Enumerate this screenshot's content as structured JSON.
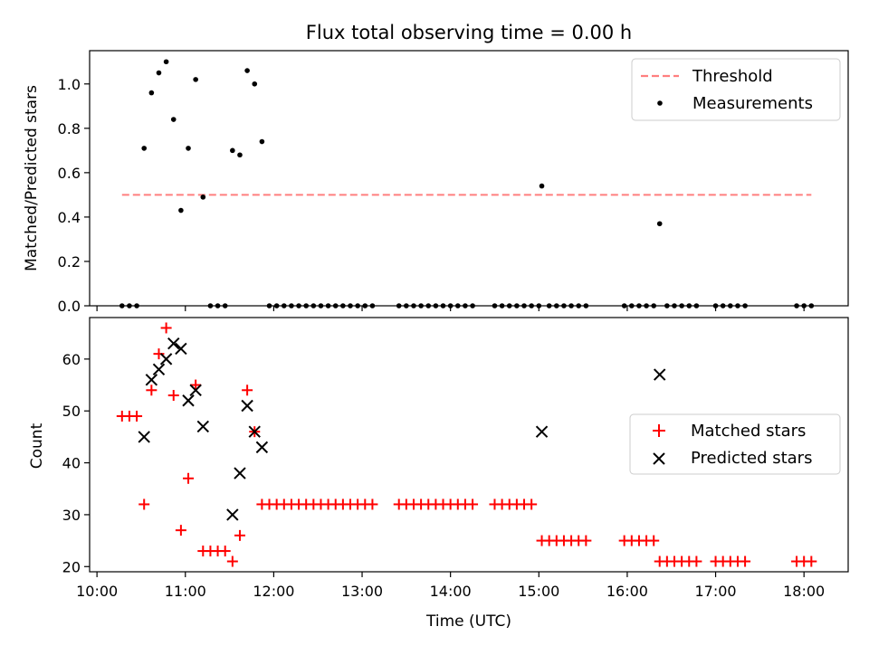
{
  "chart_data": [
    {
      "type": "scatter",
      "title": "Flux total observing time = 0.00 h",
      "xlabel": "",
      "ylabel": "Matched/Predicted stars",
      "xlim": [
        "09:55",
        "18:30"
      ],
      "ylim": [
        0.0,
        1.15
      ],
      "yticks": [
        "0.0",
        "0.2",
        "0.4",
        "0.6",
        "0.8",
        "1.0"
      ],
      "threshold_color": "#ff7f7f",
      "measure_color": "#000000",
      "legend": {
        "position": "top-right",
        "entries": [
          "Threshold",
          "Measurements"
        ]
      },
      "series": [
        {
          "name": "Threshold",
          "kind": "line",
          "x": [
            "10:17",
            "18:05"
          ],
          "y": [
            0.5,
            0.5
          ]
        },
        {
          "name": "Measurements",
          "kind": "scatter",
          "points": [
            [
              "10:17",
              0
            ],
            [
              "10:22",
              0
            ],
            [
              "10:27",
              0
            ],
            [
              "10:32",
              0.71
            ],
            [
              "10:37",
              0.96
            ],
            [
              "10:42",
              1.05
            ],
            [
              "10:47",
              1.1
            ],
            [
              "10:52",
              0.84
            ],
            [
              "10:57",
              0.43
            ],
            [
              "11:02",
              0.71
            ],
            [
              "11:07",
              1.02
            ],
            [
              "11:12",
              0.49
            ],
            [
              "11:17",
              0
            ],
            [
              "11:22",
              0
            ],
            [
              "11:27",
              0
            ],
            [
              "11:32",
              0.7
            ],
            [
              "11:37",
              0.68
            ],
            [
              "11:42",
              1.06
            ],
            [
              "11:47",
              1.0
            ],
            [
              "11:52",
              0.74
            ],
            [
              "11:57",
              0
            ],
            [
              "12:02",
              0
            ],
            [
              "12:07",
              0
            ],
            [
              "12:12",
              0
            ],
            [
              "12:17",
              0
            ],
            [
              "12:22",
              0
            ],
            [
              "12:27",
              0
            ],
            [
              "12:32",
              0
            ],
            [
              "12:37",
              0
            ],
            [
              "12:42",
              0
            ],
            [
              "12:47",
              0
            ],
            [
              "12:52",
              0
            ],
            [
              "12:57",
              0
            ],
            [
              "13:02",
              0
            ],
            [
              "13:07",
              0
            ],
            [
              "13:25",
              0
            ],
            [
              "13:30",
              0
            ],
            [
              "13:35",
              0
            ],
            [
              "13:40",
              0
            ],
            [
              "13:45",
              0
            ],
            [
              "13:50",
              0
            ],
            [
              "13:55",
              0
            ],
            [
              "14:00",
              0
            ],
            [
              "14:05",
              0
            ],
            [
              "14:10",
              0
            ],
            [
              "14:15",
              0
            ],
            [
              "14:30",
              0
            ],
            [
              "14:35",
              0
            ],
            [
              "14:40",
              0
            ],
            [
              "14:45",
              0
            ],
            [
              "14:50",
              0
            ],
            [
              "14:55",
              0
            ],
            [
              "15:00",
              0
            ],
            [
              "15:02",
              0.54
            ],
            [
              "15:07",
              0
            ],
            [
              "15:12",
              0
            ],
            [
              "15:17",
              0
            ],
            [
              "15:22",
              0
            ],
            [
              "15:27",
              0
            ],
            [
              "15:32",
              0
            ],
            [
              "15:58",
              0
            ],
            [
              "16:03",
              0
            ],
            [
              "16:08",
              0
            ],
            [
              "16:13",
              0
            ],
            [
              "16:18",
              0
            ],
            [
              "16:22",
              0.37
            ],
            [
              "16:27",
              0
            ],
            [
              "16:32",
              0
            ],
            [
              "16:37",
              0
            ],
            [
              "16:42",
              0
            ],
            [
              "16:47",
              0
            ],
            [
              "17:00",
              0
            ],
            [
              "17:05",
              0
            ],
            [
              "17:10",
              0
            ],
            [
              "17:15",
              0
            ],
            [
              "17:20",
              0
            ],
            [
              "17:55",
              0
            ],
            [
              "18:00",
              0
            ],
            [
              "18:05",
              0
            ]
          ]
        }
      ]
    },
    {
      "type": "scatter",
      "title": "",
      "xlabel": "Time (UTC)",
      "ylabel": "Count",
      "xlim": [
        "09:55",
        "18:30"
      ],
      "ylim": [
        19,
        68
      ],
      "yticks": [
        "20",
        "30",
        "40",
        "50",
        "60"
      ],
      "xticks": [
        "10:00",
        "11:00",
        "12:00",
        "13:00",
        "14:00",
        "15:00",
        "16:00",
        "17:00",
        "18:00"
      ],
      "matched_color": "#ff0000",
      "predicted_color": "#000000",
      "legend": {
        "position": "center-right",
        "entries": [
          "Matched stars",
          "Predicted stars"
        ]
      },
      "series": [
        {
          "name": "Matched stars",
          "marker": "plus",
          "points": [
            [
              "10:17",
              49
            ],
            [
              "10:22",
              49
            ],
            [
              "10:27",
              49
            ],
            [
              "10:32",
              32
            ],
            [
              "10:37",
              54
            ],
            [
              "10:42",
              61
            ],
            [
              "10:47",
              66
            ],
            [
              "10:52",
              53
            ],
            [
              "10:57",
              27
            ],
            [
              "11:02",
              37
            ],
            [
              "11:07",
              55
            ],
            [
              "11:12",
              23
            ],
            [
              "11:17",
              23
            ],
            [
              "11:22",
              23
            ],
            [
              "11:27",
              23
            ],
            [
              "11:32",
              21
            ],
            [
              "11:37",
              26
            ],
            [
              "11:42",
              54
            ],
            [
              "11:47",
              46
            ],
            [
              "11:52",
              32
            ],
            [
              "11:57",
              32
            ],
            [
              "12:02",
              32
            ],
            [
              "12:07",
              32
            ],
            [
              "12:12",
              32
            ],
            [
              "12:17",
              32
            ],
            [
              "12:22",
              32
            ],
            [
              "12:27",
              32
            ],
            [
              "12:32",
              32
            ],
            [
              "12:37",
              32
            ],
            [
              "12:42",
              32
            ],
            [
              "12:47",
              32
            ],
            [
              "12:52",
              32
            ],
            [
              "12:57",
              32
            ],
            [
              "13:02",
              32
            ],
            [
              "13:07",
              32
            ],
            [
              "13:25",
              32
            ],
            [
              "13:30",
              32
            ],
            [
              "13:35",
              32
            ],
            [
              "13:40",
              32
            ],
            [
              "13:45",
              32
            ],
            [
              "13:50",
              32
            ],
            [
              "13:55",
              32
            ],
            [
              "14:00",
              32
            ],
            [
              "14:05",
              32
            ],
            [
              "14:10",
              32
            ],
            [
              "14:15",
              32
            ],
            [
              "14:30",
              32
            ],
            [
              "14:35",
              32
            ],
            [
              "14:40",
              32
            ],
            [
              "14:45",
              32
            ],
            [
              "14:50",
              32
            ],
            [
              "14:55",
              32
            ],
            [
              "15:02",
              25
            ],
            [
              "15:07",
              25
            ],
            [
              "15:12",
              25
            ],
            [
              "15:17",
              25
            ],
            [
              "15:22",
              25
            ],
            [
              "15:27",
              25
            ],
            [
              "15:32",
              25
            ],
            [
              "15:58",
              25
            ],
            [
              "16:03",
              25
            ],
            [
              "16:08",
              25
            ],
            [
              "16:13",
              25
            ],
            [
              "16:18",
              25
            ],
            [
              "16:22",
              21
            ],
            [
              "16:27",
              21
            ],
            [
              "16:32",
              21
            ],
            [
              "16:37",
              21
            ],
            [
              "16:42",
              21
            ],
            [
              "16:47",
              21
            ],
            [
              "17:00",
              21
            ],
            [
              "17:05",
              21
            ],
            [
              "17:10",
              21
            ],
            [
              "17:15",
              21
            ],
            [
              "17:20",
              21
            ],
            [
              "17:55",
              21
            ],
            [
              "18:00",
              21
            ],
            [
              "18:05",
              21
            ]
          ]
        },
        {
          "name": "Predicted stars",
          "marker": "x",
          "points": [
            [
              "10:32",
              45
            ],
            [
              "10:37",
              56
            ],
            [
              "10:42",
              58
            ],
            [
              "10:47",
              60
            ],
            [
              "10:52",
              63
            ],
            [
              "10:57",
              62
            ],
            [
              "11:02",
              52
            ],
            [
              "11:07",
              54
            ],
            [
              "11:12",
              47
            ],
            [
              "11:32",
              30
            ],
            [
              "11:37",
              38
            ],
            [
              "11:42",
              51
            ],
            [
              "11:47",
              46
            ],
            [
              "11:52",
              43
            ],
            [
              "15:02",
              46
            ],
            [
              "16:22",
              57
            ]
          ]
        }
      ]
    }
  ]
}
